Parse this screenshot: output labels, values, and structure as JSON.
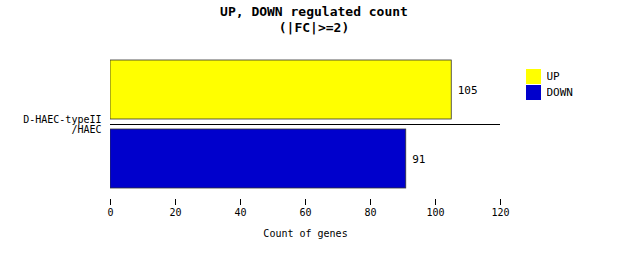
{
  "chart_data": {
    "type": "bar",
    "orientation": "horizontal",
    "title": "UP, DOWN regulated count\n(|FC|>=2)",
    "xlabel": "Count of genes",
    "categories": [
      "D-HAEC-typeII\n/HAEC"
    ],
    "series": [
      {
        "name": "UP",
        "color": "#FFFF00",
        "values": [
          105
        ]
      },
      {
        "name": "DOWN",
        "color": "#0000CC",
        "values": [
          91
        ]
      }
    ],
    "xlim": [
      0,
      120
    ],
    "xticks": [
      0,
      20,
      40,
      60,
      80,
      100,
      120
    ],
    "data_labels": true,
    "grid": false,
    "legend": "right"
  }
}
